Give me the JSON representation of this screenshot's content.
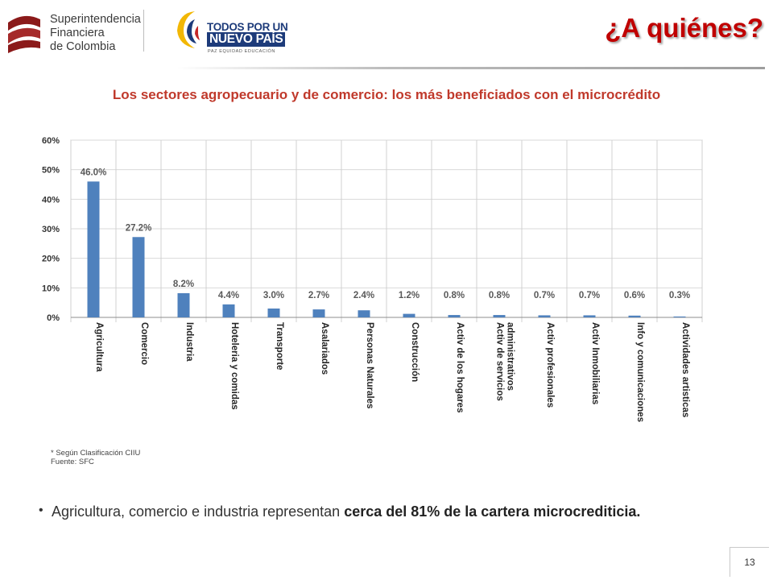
{
  "header": {
    "org_line1": "Superintendencia",
    "org_line2": "Financiera",
    "org_line3": "de Colombia",
    "gov_line1": "TODOS POR UN",
    "gov_line2": "NUEVO PAÍS",
    "gov_line3": "PAZ  EQUIDAD  EDUCACIÓN",
    "title": "¿A quiénes?"
  },
  "subtitle": "Los sectores agropecuario y de comercio: los más beneficiados con el microcrédito",
  "chart_data": {
    "type": "bar",
    "categories": [
      "Agricultura",
      "Comercio",
      "Industria",
      "Hoteleria y comidas",
      "Transporte",
      "Asalariados",
      "Personas Naturales",
      "Construcción",
      "Activ de los hogares",
      "Activ de servicios administrativos",
      "Activ profesionales",
      "Activ Inmobiliarias",
      "Info y comunicaciones",
      "Actividades artisticas"
    ],
    "category_lines": [
      [
        "Agricultura"
      ],
      [
        "Comercio"
      ],
      [
        "Industria"
      ],
      [
        "Hoteleria y comidas"
      ],
      [
        "Transporte"
      ],
      [
        "Asalariados"
      ],
      [
        "Personas Naturales"
      ],
      [
        "Construcción"
      ],
      [
        "Activ de los hogares"
      ],
      [
        "Activ de servicios",
        "administrativos"
      ],
      [
        "Activ profesionales"
      ],
      [
        "Activ Inmobiliarias"
      ],
      [
        "Info y comunicaciones"
      ],
      [
        "Actividades artisticas"
      ]
    ],
    "values": [
      46.0,
      27.2,
      8.2,
      4.4,
      3.0,
      2.7,
      2.4,
      1.2,
      0.8,
      0.8,
      0.7,
      0.7,
      0.6,
      0.3
    ],
    "value_labels": [
      "46.0%",
      "27.2%",
      "8.2%",
      "4.4%",
      "3.0%",
      "2.7%",
      "2.4%",
      "1.2%",
      "0.8%",
      "0.8%",
      "0.7%",
      "0.7%",
      "0.6%",
      "0.3%"
    ],
    "y_ticks": [
      "0%",
      "10%",
      "20%",
      "30%",
      "40%",
      "50%",
      "60%"
    ],
    "ylim": [
      0,
      60
    ],
    "grid": true,
    "bar_color": "#4f81bd"
  },
  "footnote": {
    "line1": "* Según Clasificación CIIU",
    "line2": "Fuente: SFC"
  },
  "bullet": {
    "text_before": "Agricultura, comercio e industria representan ",
    "text_bold": "cerca del 81% de la cartera microcrediticia."
  },
  "page_number": "13"
}
